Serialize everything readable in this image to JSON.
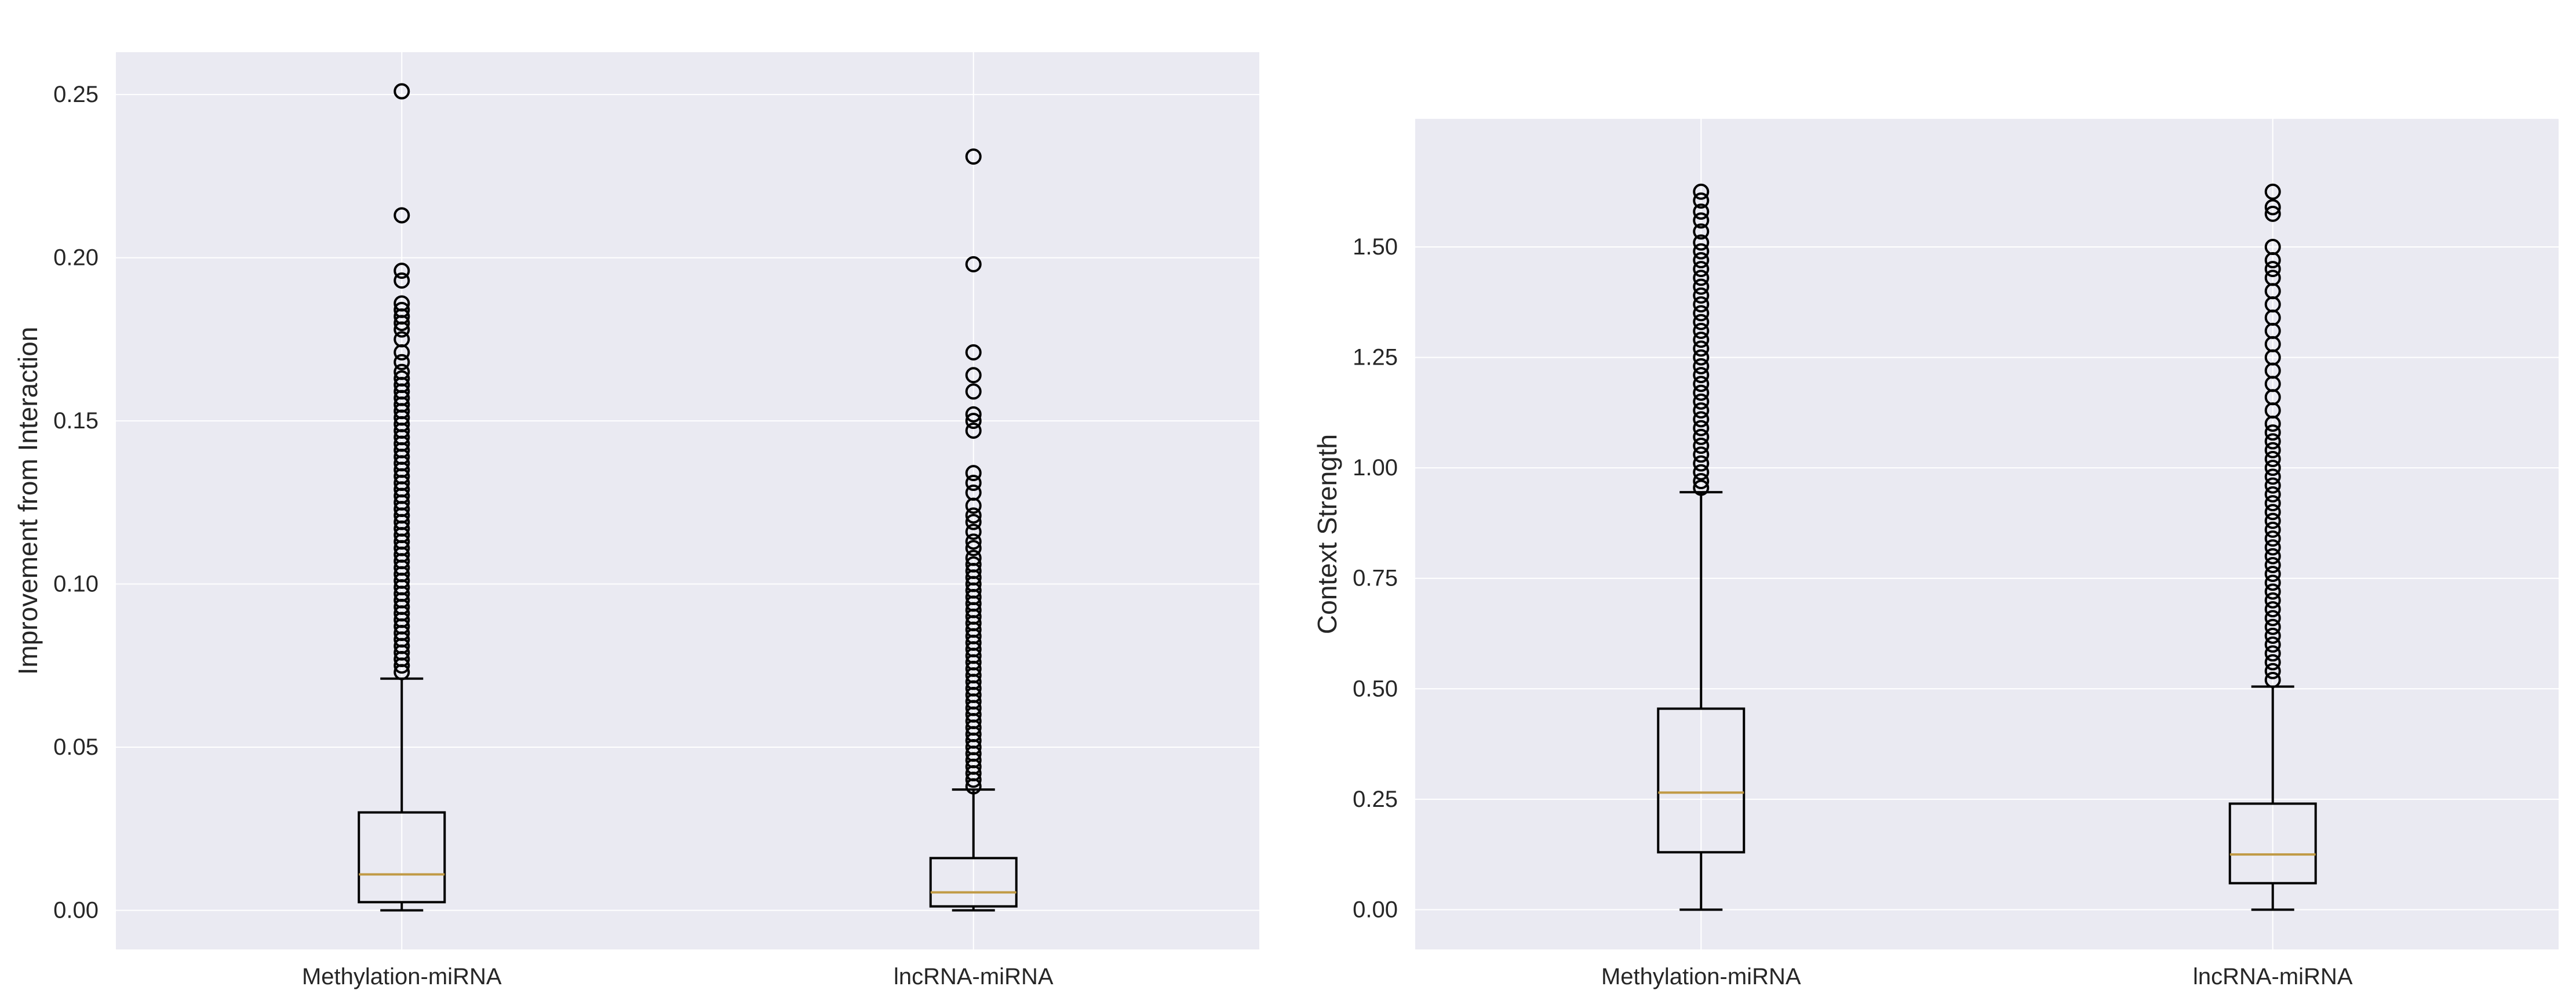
{
  "chart_data": [
    {
      "type": "box",
      "ylabel": "Improvement from Interaction",
      "categories": [
        "Methylation-miRNA",
        "lncRNA-miRNA"
      ],
      "ylim": [
        -0.012,
        0.263
      ],
      "yticks": [
        0.0,
        0.05,
        0.1,
        0.15,
        0.2,
        0.25
      ],
      "ytick_labels": [
        "0.00",
        "0.05",
        "0.10",
        "0.15",
        "0.20",
        "0.25"
      ],
      "grid": true,
      "boxes": [
        {
          "category": "Methylation-miRNA",
          "whisker_low": 0.0,
          "q1": 0.0025,
          "median": 0.011,
          "q3": 0.03,
          "whisker_high": 0.071,
          "outliers": [
            0.251,
            0.213,
            0.196,
            0.193,
            0.186,
            0.184,
            0.182,
            0.18,
            0.178,
            0.175,
            0.171,
            0.168,
            0.165,
            0.163,
            0.161,
            0.159,
            0.157,
            0.155,
            0.153,
            0.151,
            0.149,
            0.147,
            0.145,
            0.143,
            0.141,
            0.139,
            0.137,
            0.135,
            0.133,
            0.131,
            0.129,
            0.127,
            0.125,
            0.123,
            0.121,
            0.119,
            0.117,
            0.115,
            0.113,
            0.111,
            0.109,
            0.107,
            0.105,
            0.103,
            0.101,
            0.099,
            0.097,
            0.095,
            0.093,
            0.091,
            0.089,
            0.087,
            0.085,
            0.083,
            0.081,
            0.079,
            0.077,
            0.075,
            0.073
          ]
        },
        {
          "category": "lncRNA-miRNA",
          "whisker_low": 0.0,
          "q1": 0.0012,
          "median": 0.0055,
          "q3": 0.016,
          "whisker_high": 0.037,
          "outliers": [
            0.231,
            0.198,
            0.171,
            0.164,
            0.159,
            0.152,
            0.15,
            0.147,
            0.134,
            0.131,
            0.128,
            0.124,
            0.121,
            0.119,
            0.116,
            0.113,
            0.111,
            0.108,
            0.106,
            0.104,
            0.102,
            0.1,
            0.098,
            0.096,
            0.094,
            0.092,
            0.09,
            0.088,
            0.086,
            0.084,
            0.082,
            0.08,
            0.078,
            0.076,
            0.074,
            0.072,
            0.07,
            0.068,
            0.066,
            0.064,
            0.062,
            0.06,
            0.058,
            0.056,
            0.054,
            0.052,
            0.05,
            0.048,
            0.046,
            0.044,
            0.042,
            0.04,
            0.038
          ]
        }
      ]
    },
    {
      "type": "box",
      "ylabel": "Context Strength",
      "categories": [
        "Methylation-miRNA",
        "lncRNA-miRNA"
      ],
      "ylim": [
        -0.09,
        1.79
      ],
      "yticks": [
        0.0,
        0.25,
        0.5,
        0.75,
        1.0,
        1.25,
        1.5
      ],
      "ytick_labels": [
        "0.00",
        "0.25",
        "0.50",
        "0.75",
        "1.00",
        "1.25",
        "1.50"
      ],
      "grid": true,
      "boxes": [
        {
          "category": "Methylation-miRNA",
          "whisker_low": 0.0,
          "q1": 0.13,
          "median": 0.265,
          "q3": 0.455,
          "whisker_high": 0.945,
          "outliers": [
            1.625,
            1.605,
            1.58,
            1.56,
            1.535,
            1.51,
            1.49,
            1.47,
            1.45,
            1.43,
            1.41,
            1.39,
            1.37,
            1.35,
            1.33,
            1.31,
            1.29,
            1.27,
            1.25,
            1.23,
            1.21,
            1.19,
            1.17,
            1.15,
            1.13,
            1.11,
            1.09,
            1.07,
            1.05,
            1.03,
            1.01,
            0.99,
            0.97,
            0.955
          ]
        },
        {
          "category": "lncRNA-miRNA",
          "whisker_low": 0.0,
          "q1": 0.06,
          "median": 0.125,
          "q3": 0.24,
          "whisker_high": 0.505,
          "outliers": [
            1.625,
            1.59,
            1.575,
            1.5,
            1.47,
            1.45,
            1.43,
            1.4,
            1.37,
            1.34,
            1.31,
            1.28,
            1.25,
            1.22,
            1.19,
            1.16,
            1.13,
            1.1,
            1.08,
            1.06,
            1.04,
            1.02,
            1.0,
            0.98,
            0.96,
            0.94,
            0.92,
            0.9,
            0.88,
            0.86,
            0.84,
            0.82,
            0.8,
            0.78,
            0.76,
            0.74,
            0.72,
            0.7,
            0.68,
            0.66,
            0.64,
            0.62,
            0.6,
            0.58,
            0.56,
            0.54,
            0.52
          ]
        }
      ]
    }
  ],
  "colors": {
    "panel_background": "#eaeaf2",
    "grid": "#ffffff",
    "box_line": "#000000",
    "median": "#c09a45",
    "text": "#262626"
  }
}
